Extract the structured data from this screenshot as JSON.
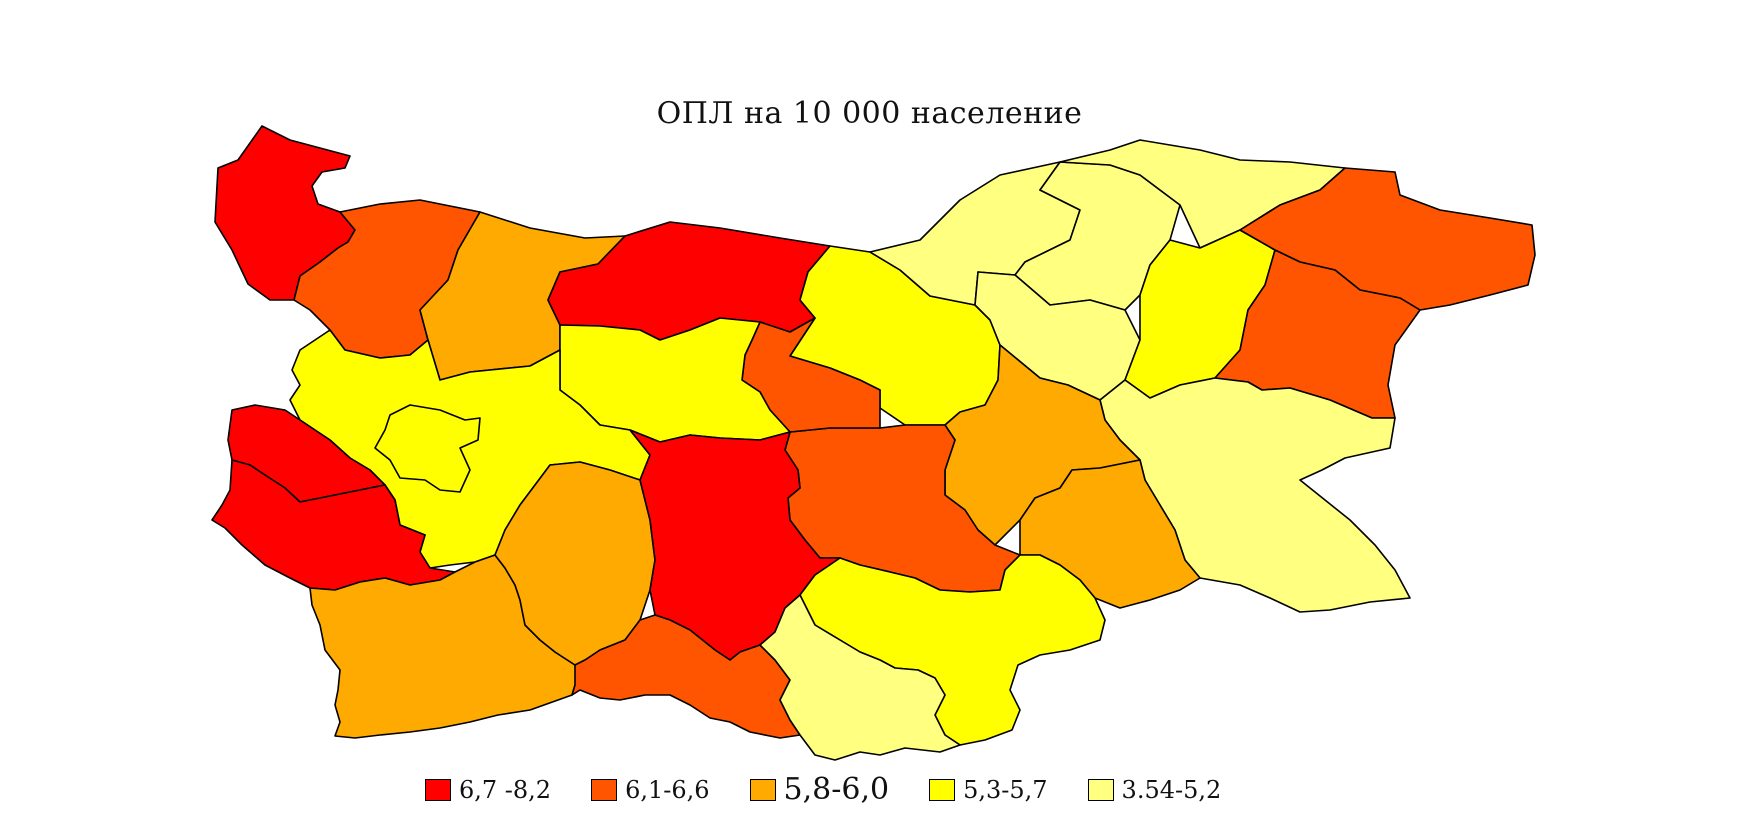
{
  "title": "ОПЛ на 10 000 население",
  "legend": [
    {
      "label": "6,7 -8,2",
      "color": "#ff0000"
    },
    {
      "label": "6,1-6,6",
      "color": "#ff5500"
    },
    {
      "label": "5,8-6,0",
      "color": "#ffaa00"
    },
    {
      "label": "5,3-5,7",
      "color": "#ffff00"
    },
    {
      "label": "3.54-5,2",
      "color": "#ffff80"
    }
  ]
}
